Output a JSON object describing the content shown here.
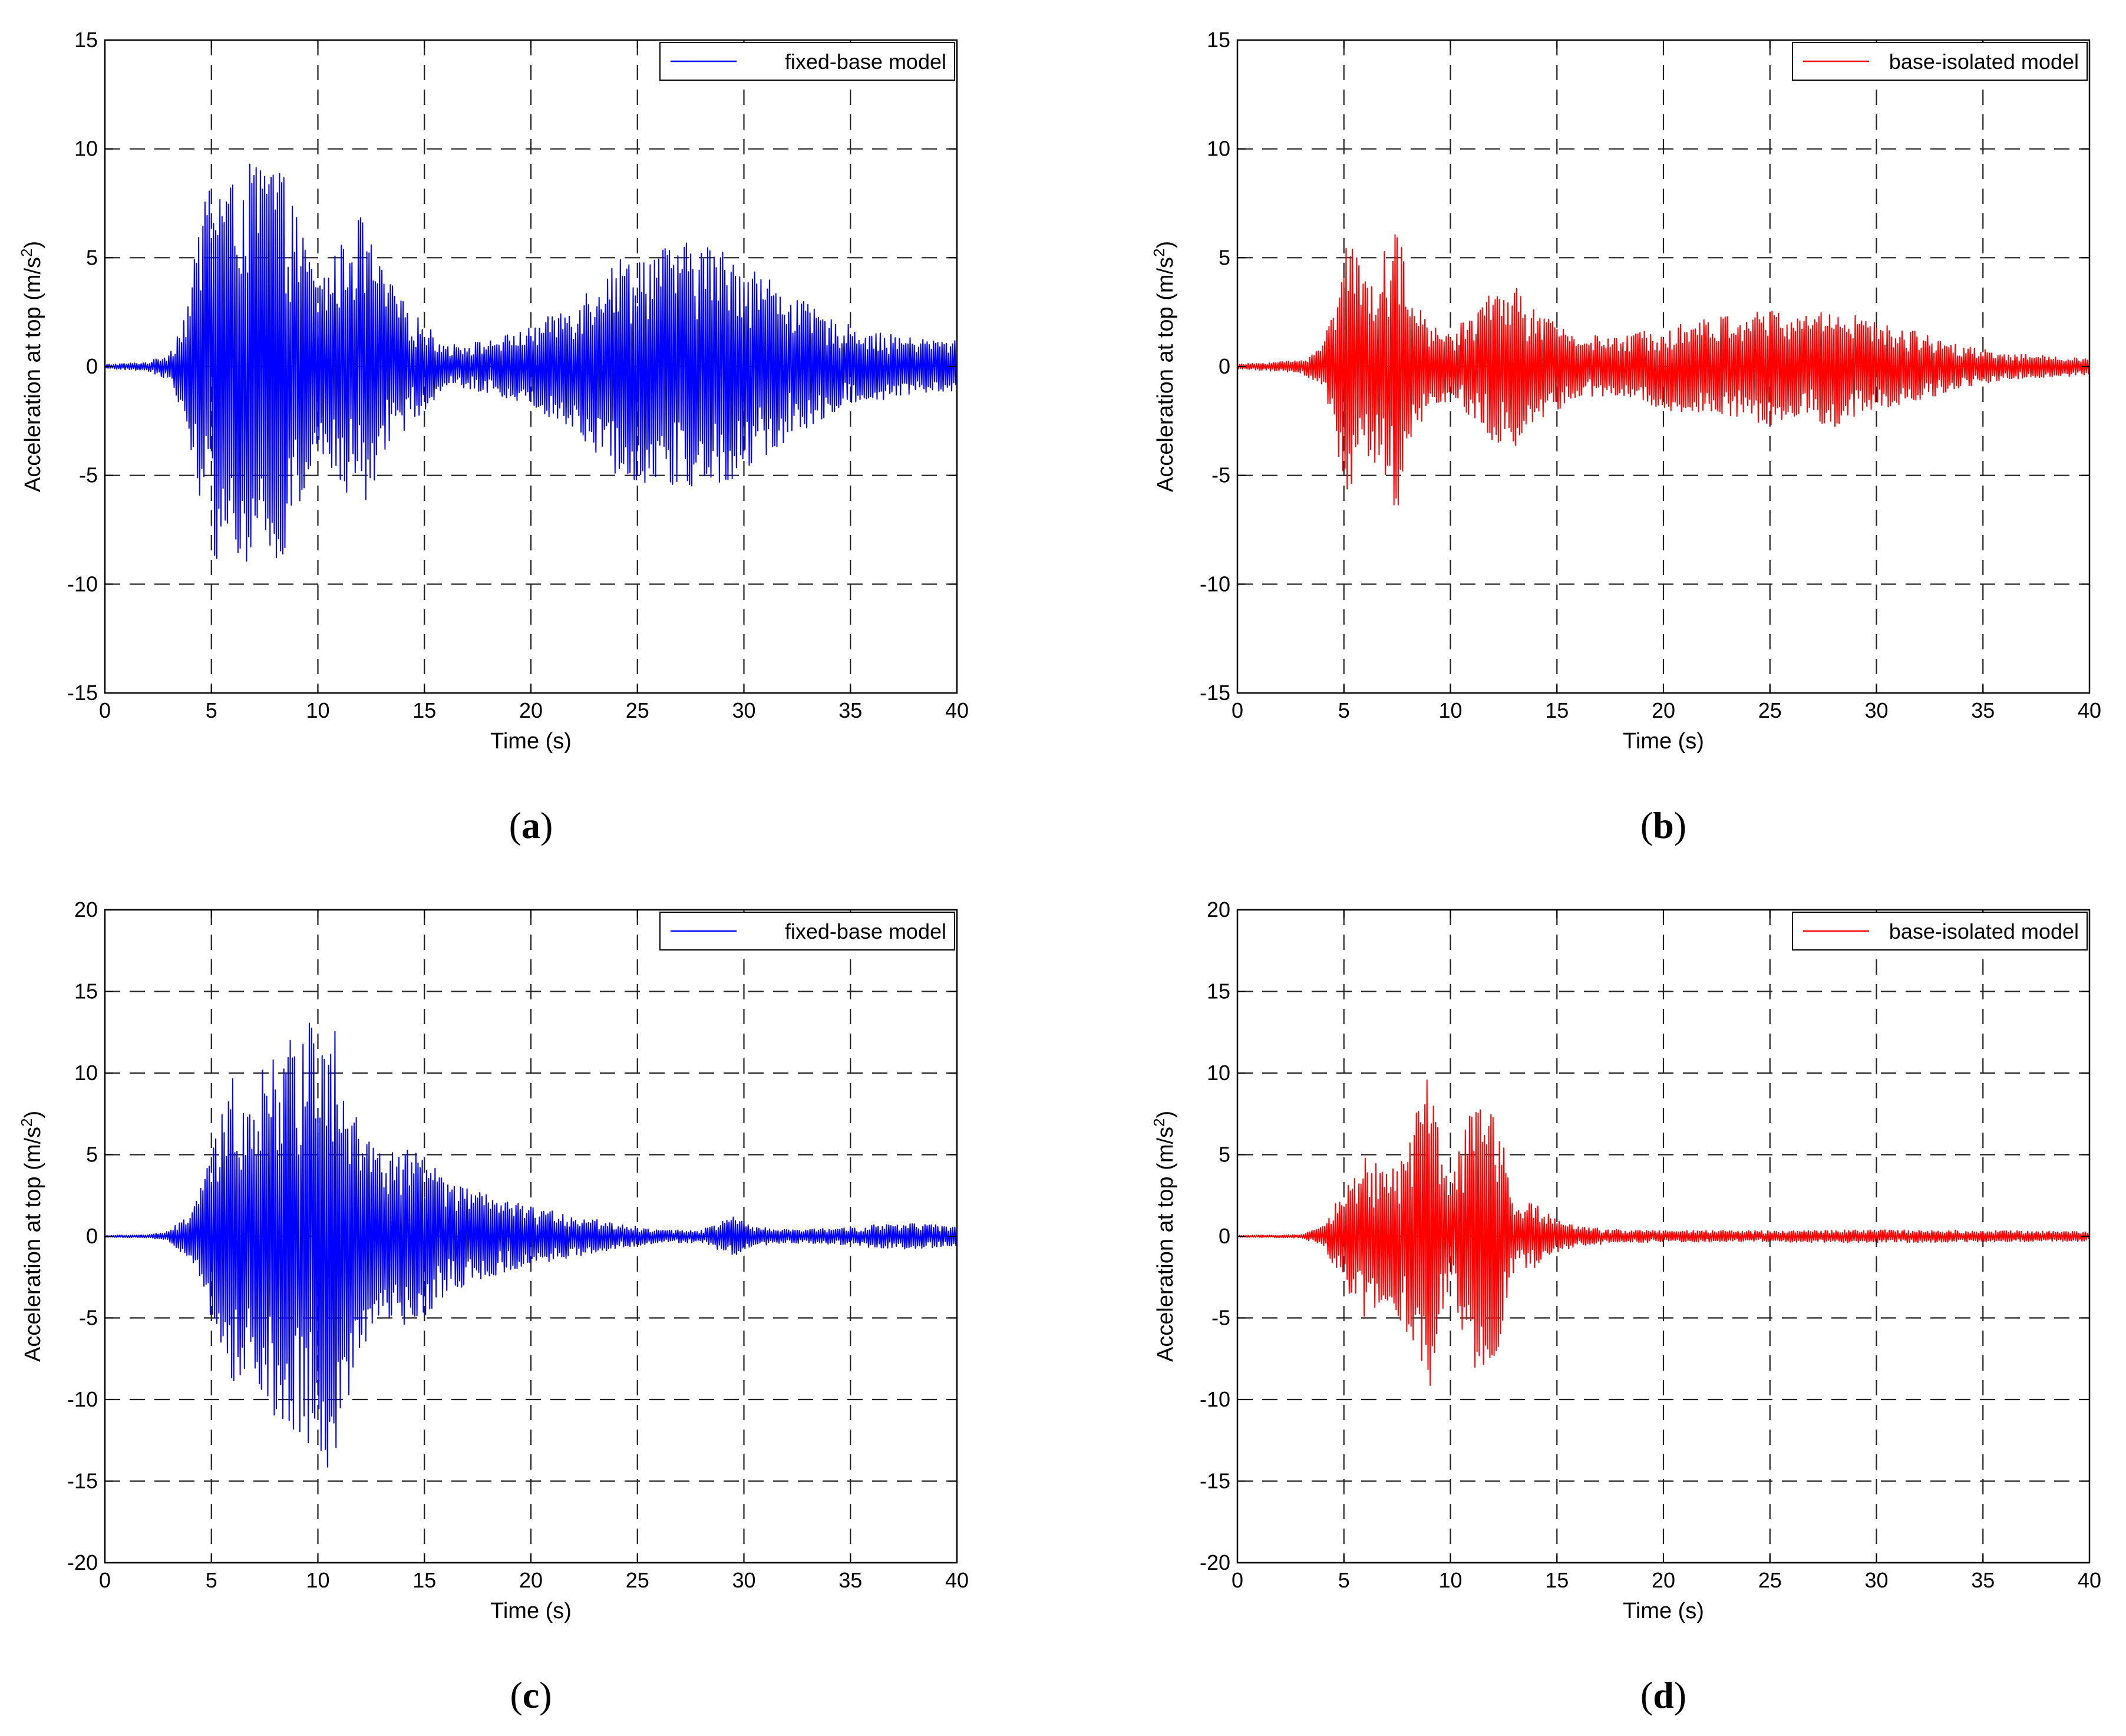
{
  "chart_data": [
    {
      "type": "line",
      "panel_label": "a",
      "xlabel": "Time (s)",
      "ylabel": "Acceleration at top (m/s2)",
      "xlim": [
        0,
        40
      ],
      "ylim": [
        -15,
        15
      ],
      "xticks": [
        0,
        5,
        10,
        15,
        20,
        25,
        30,
        35,
        40
      ],
      "yticks": [
        -15,
        -10,
        -5,
        0,
        5,
        10,
        15
      ],
      "grid": true,
      "legend_position": "top-right",
      "series": [
        {
          "name": "fixed-base model",
          "color": "#0000ff",
          "envelope": {
            "t": [
              0,
              2,
              3,
              3.5,
              4,
              4.7,
              5,
              6,
              7,
              8,
              9,
              10,
              11,
              12,
              13,
              14,
              15,
              16,
              18,
              20,
              22,
              24,
              26,
              28,
              30,
              32,
              34,
              36,
              38,
              40
            ],
            "a": [
              0.1,
              0.2,
              0.6,
              1.8,
              3.5,
              8.5,
              9.0,
              8.5,
              9.5,
              9.8,
              7.0,
              4.0,
              5.5,
              7.0,
              4.5,
              3.0,
              2.0,
              1.0,
              1.2,
              1.8,
              3.0,
              5.0,
              5.5,
              5.8,
              5.0,
              3.5,
              2.2,
              1.6,
              1.3,
              1.2
            ]
          }
        }
      ]
    },
    {
      "type": "line",
      "panel_label": "b",
      "xlabel": "Time (s)",
      "ylabel": "Acceleration at top (m/s2)",
      "xlim": [
        0,
        40
      ],
      "ylim": [
        -15,
        15
      ],
      "xticks": [
        0,
        5,
        10,
        15,
        20,
        25,
        30,
        35,
        40
      ],
      "yticks": [
        -15,
        -10,
        -5,
        0,
        5,
        10,
        15
      ],
      "grid": true,
      "legend_position": "top-right",
      "series": [
        {
          "name": "base-isolated model",
          "color": "#ff0000",
          "envelope": {
            "t": [
              0,
              3,
              4,
              4.5,
              5,
              6,
              7,
              7.5,
              8,
              9,
              10,
              12,
              13,
              14,
              16,
              18,
              20,
              22,
              24,
              25,
              26,
              28,
              30,
              32,
              34,
              36,
              40
            ],
            "a": [
              0.1,
              0.3,
              1.0,
              3.0,
              6.5,
              4.0,
              5.5,
              6.8,
              3.5,
              2.0,
              1.5,
              3.5,
              3.8,
              2.5,
              1.5,
              1.3,
              2.0,
              2.2,
              2.5,
              2.7,
              2.3,
              2.8,
              2.0,
              1.6,
              1.0,
              0.6,
              0.4
            ]
          }
        }
      ]
    },
    {
      "type": "line",
      "panel_label": "c",
      "xlabel": "Time (s)",
      "ylabel": "Acceleration at top (m/s2)",
      "xlim": [
        0,
        40
      ],
      "ylim": [
        -20,
        20
      ],
      "xticks": [
        0,
        5,
        10,
        15,
        20,
        25,
        30,
        35,
        40
      ],
      "yticks": [
        -20,
        -15,
        -10,
        -5,
        0,
        5,
        10,
        15,
        20
      ],
      "grid": true,
      "legend_position": "top-right",
      "series": [
        {
          "name": "fixed-base model",
          "color": "#0000ff",
          "envelope": {
            "t": [
              0,
              2,
              3,
              4,
              5,
              6,
              7,
              8,
              9,
              10,
              10.5,
              11,
              12,
              13,
              14,
              15,
              16,
              18,
              20,
              22,
              24,
              26,
              28,
              29.5,
              30.5,
              32,
              34,
              36,
              38,
              40
            ],
            "a": [
              0.05,
              0.1,
              0.3,
              1.5,
              5.0,
              10.0,
              9.0,
              12.0,
              12.0,
              14.0,
              15.5,
              12.0,
              7.0,
              5.0,
              5.5,
              5.0,
              3.5,
              2.5,
              1.8,
              1.3,
              0.8,
              0.4,
              0.4,
              1.2,
              0.6,
              0.4,
              0.5,
              0.7,
              0.8,
              0.6
            ]
          }
        }
      ]
    },
    {
      "type": "line",
      "panel_label": "d",
      "xlabel": "Time (s)",
      "ylabel": "Acceleration at top (m/s2)",
      "xlim": [
        0,
        40
      ],
      "ylim": [
        -20,
        20
      ],
      "xticks": [
        0,
        5,
        10,
        15,
        20,
        25,
        30,
        35,
        40
      ],
      "yticks": [
        -20,
        -15,
        -10,
        -5,
        0,
        5,
        10,
        15,
        20
      ],
      "grid": true,
      "legend_position": "top-right",
      "series": [
        {
          "name": "base-isolated model",
          "color": "#ff0000",
          "envelope": {
            "t": [
              0,
              3,
              4,
              5,
              6,
              7,
              8,
              9,
              9.5,
              10,
              11,
              12,
              12.5,
              13,
              14,
              15,
              16,
              18,
              20,
              25,
              30,
              35,
              40
            ],
            "a": [
              0.05,
              0.1,
              0.6,
              3.0,
              5.0,
              4.0,
              6.0,
              10.0,
              6.0,
              3.0,
              8.5,
              8.0,
              5.5,
              2.0,
              2.0,
              1.0,
              0.6,
              0.4,
              0.35,
              0.35,
              0.4,
              0.35,
              0.3
            ]
          }
        }
      ]
    }
  ]
}
